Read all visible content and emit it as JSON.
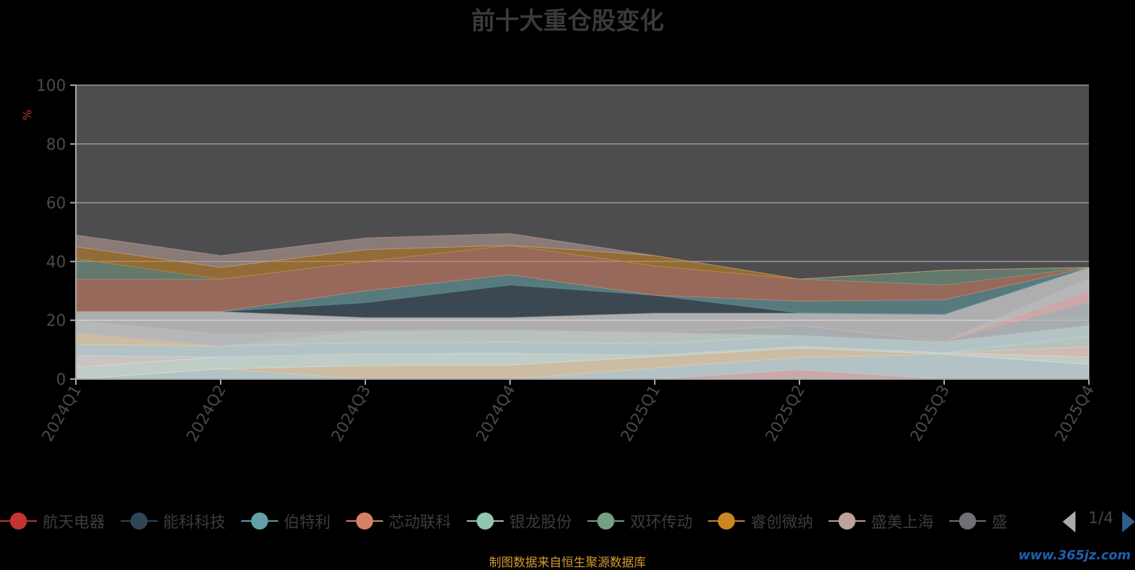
{
  "title": "前十大重仓股变化",
  "source_note": "制图数据来自恒生聚源数据库",
  "watermark": "www.365jz.com",
  "pager": {
    "text": "1/4"
  },
  "legend_visible": [
    {
      "name": "航天电器",
      "color": "#c23531"
    },
    {
      "name": "能科科技",
      "color": "#2f4554"
    },
    {
      "name": "伯特利",
      "color": "#61a0a8"
    },
    {
      "name": "芯动联科",
      "color": "#d48265"
    },
    {
      "name": "银龙股份",
      "color": "#91c7ae"
    },
    {
      "name": "双环传动",
      "color": "#749f83"
    },
    {
      "name": "睿创微纳",
      "color": "#ca8622"
    },
    {
      "name": "盛美上海",
      "color": "#bda29a"
    },
    {
      "name": "盛",
      "color": "#6e7074"
    }
  ],
  "chart_data": {
    "type": "area",
    "title": "前十大重仓股变化",
    "ylabel": "%",
    "ylim": [
      0,
      100
    ],
    "yticks": [
      0,
      20,
      40,
      60,
      80,
      100
    ],
    "categories": [
      "2024Q1",
      "2024Q2",
      "2024Q3",
      "2024Q4",
      "2025Q1",
      "2025Q2",
      "2025Q3",
      "2025Q4"
    ],
    "grid": true,
    "stacks": [
      {
        "layers": [
          {
            "color": "#c23531",
            "values": [
              0,
              0,
              0,
              0,
              0,
              3.2,
              0,
              0
            ]
          },
          {
            "color": "#61a0a8",
            "values": [
              0,
              3.5,
              0,
              0,
              3.8,
              4.2,
              8.5,
              5.0
            ]
          },
          {
            "color": "#ca8622",
            "values": [
              0,
              0,
              4.6,
              4.8,
              3.8,
              3.2,
              0,
              0
            ]
          },
          {
            "color": "#91c7ae",
            "values": [
              4.0,
              4.0,
              4.0,
              4.0,
              0.5,
              0.5,
              0.5,
              2.5
            ]
          },
          {
            "color": "#bda29a",
            "values": [
              4.0,
              0,
              0,
              0,
              0,
              0,
              0,
              0
            ]
          },
          {
            "color": "#d48265",
            "values": [
              0,
              0,
              0,
              0,
              0,
              0,
              0,
              3.5
            ]
          },
          {
            "color": "#749f83",
            "values": [
              0,
              0,
              0,
              0,
              0,
              0,
              0,
              3.5
            ]
          },
          {
            "color": "#61a0a8",
            "values": [
              3.8,
              3.8,
              3.8,
              3.8,
              3.8,
              3.8,
              3.8,
              3.8
            ]
          },
          {
            "color": "#749f83",
            "values": [
              0,
              0,
              4.0,
              4.0,
              4.0,
              0,
              0,
              0
            ]
          },
          {
            "color": "#ca8622",
            "values": [
              4.0,
              0,
              0,
              0,
              0,
              0,
              0,
              0
            ]
          },
          {
            "color": "#2f4554",
            "values": [
              0,
              0,
              0,
              0,
              0,
              3.3,
              0,
              8.0
            ]
          },
          {
            "color": "#c23531",
            "values": [
              0,
              0,
              0,
              0,
              0,
              0,
              0,
              3.8
            ]
          },
          {
            "color": "#6e7074",
            "values": [
              4.0,
              4.0,
              0,
              0,
              0,
              0,
              0,
              4.0
            ]
          }
        ]
      },
      {
        "layers": [
          {
            "color": "#ffffff",
            "values": [
              23.0,
              23.0,
              21.0,
              21.0,
              22.5,
              22.5,
              22.0,
              38.0
            ]
          },
          {
            "color": "#2f4554",
            "values": [
              0,
              0,
              5.0,
              11.0,
              6.0,
              0,
              0,
              0
            ]
          },
          {
            "color": "#61a0a8",
            "values": [
              0,
              0,
              4.0,
              3.5,
              0,
              4.0,
              5.0,
              0
            ]
          },
          {
            "color": "#d48265",
            "values": [
              11.0,
              11.0,
              10.0,
              10.0,
              10.0,
              7.5,
              5.0,
              0
            ]
          },
          {
            "color": "#749f83",
            "values": [
              7.0,
              0,
              0,
              0,
              0,
              0,
              5.0,
              0
            ]
          },
          {
            "color": "#ca8622",
            "values": [
              4.0,
              4.0,
              4.0,
              0,
              3.5,
              0,
              0,
              0
            ]
          },
          {
            "color": "#bda29a",
            "values": [
              4.0,
              4.0,
              4.0,
              4.0,
              0,
              0,
              0,
              0
            ]
          }
        ]
      }
    ]
  }
}
